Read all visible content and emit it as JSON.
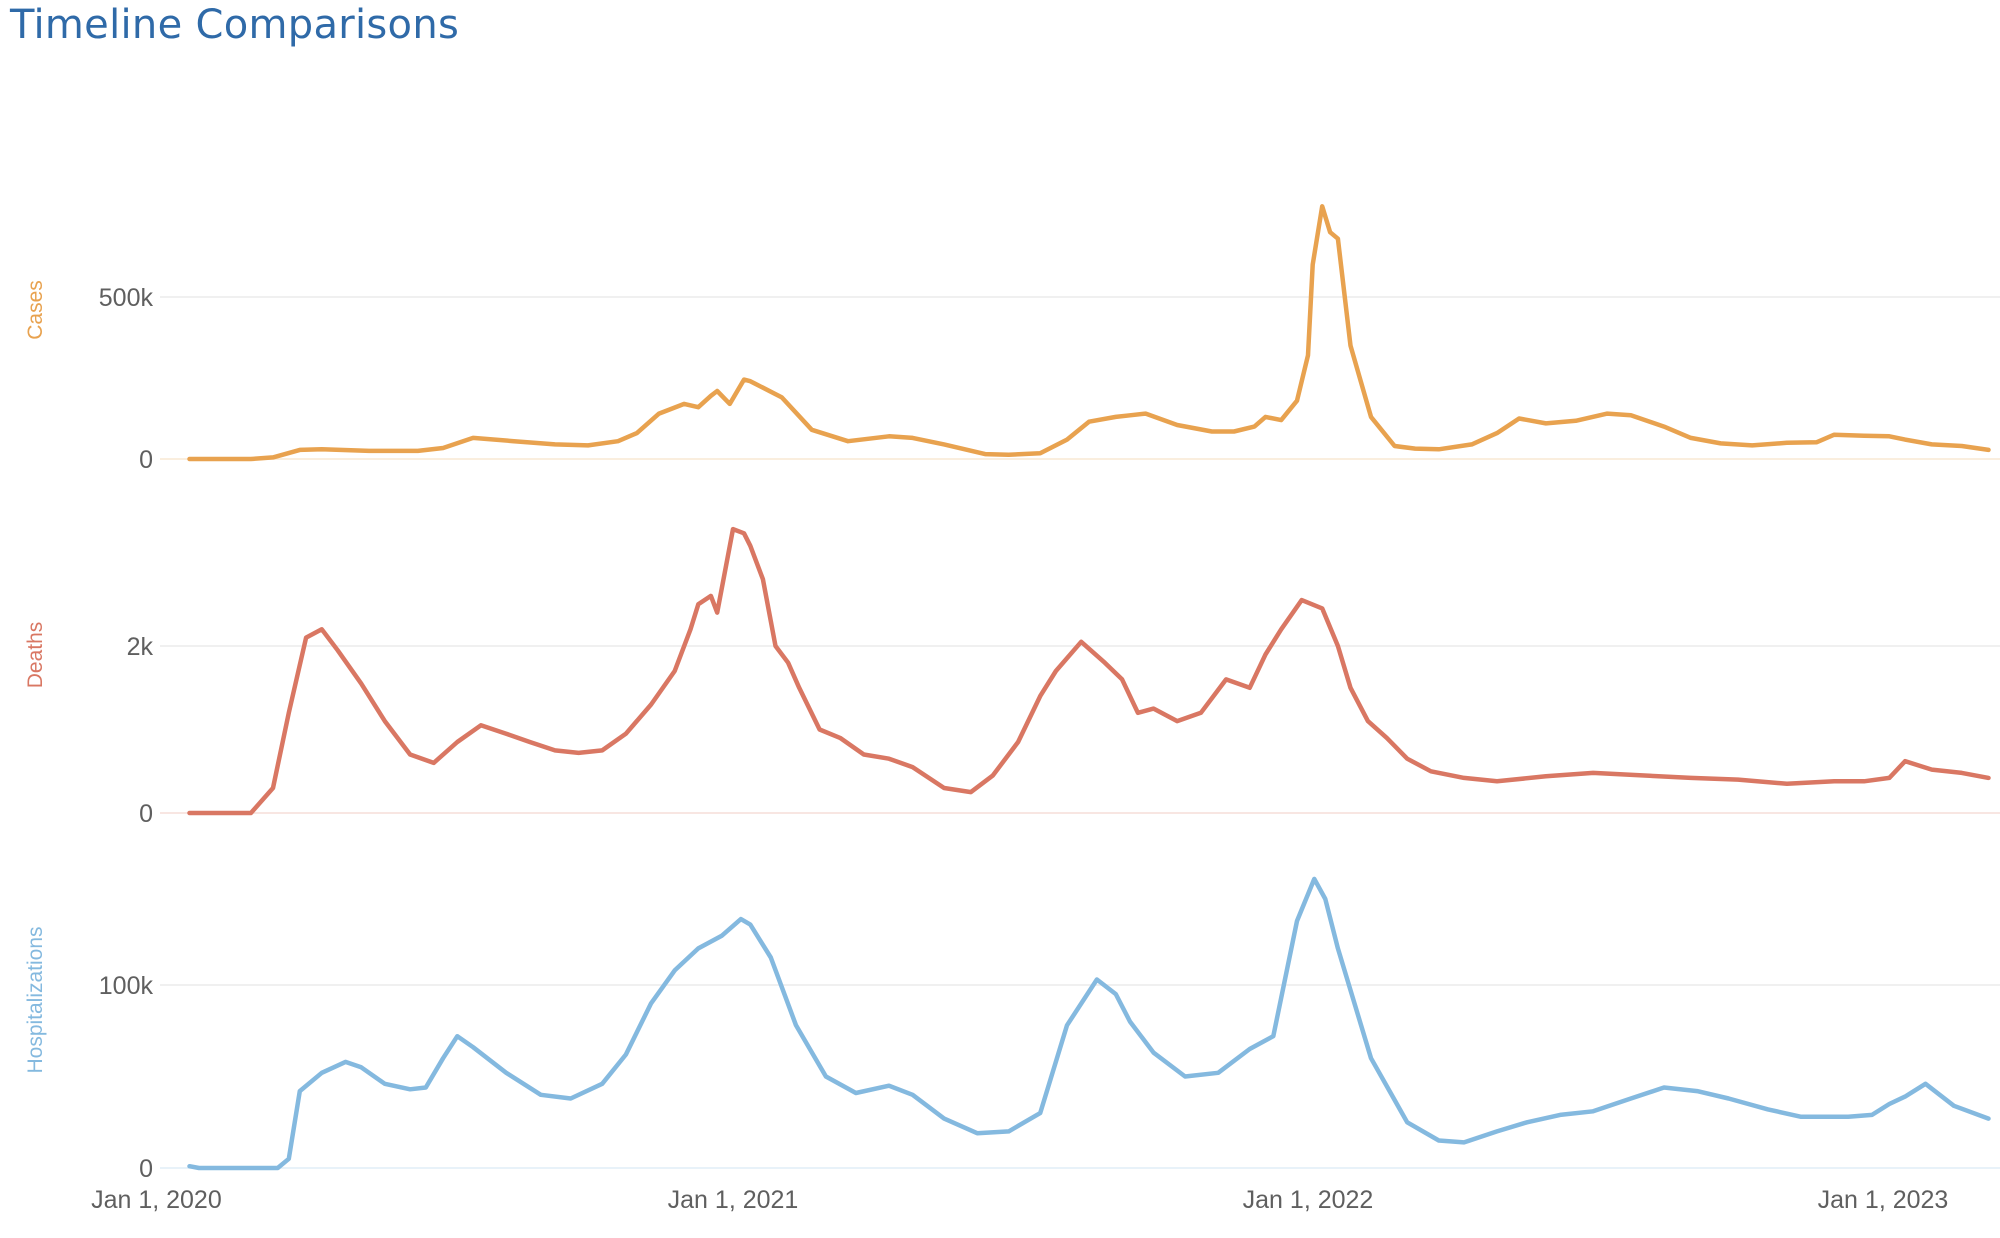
{
  "header": {
    "title": "Timeline Comparisons"
  },
  "colors": {
    "title": "#2f6aa8",
    "cases": "#e8a24f",
    "deaths": "#d97763",
    "hospitalizations": "#84b9df",
    "grid": "#ececec",
    "tick_text": "#5f5f5f"
  },
  "chart_data": [
    {
      "type": "line",
      "panel": "cases",
      "ylabel": "Cases",
      "yticks": [
        {
          "value": 0,
          "label": "0"
        },
        {
          "value": 500000,
          "label": "500k"
        }
      ],
      "xlim": [
        "2020-01-22",
        "2023-03-09"
      ],
      "ylim": [
        0,
        820000
      ],
      "color": "#e8a24f",
      "series": [
        {
          "x": [
            "2020-01-22",
            "2020-03-01",
            "2020-03-15",
            "2020-04-01",
            "2020-04-15",
            "2020-05-15",
            "2020-06-15",
            "2020-07-01",
            "2020-07-20",
            "2020-08-15",
            "2020-09-10",
            "2020-10-01",
            "2020-10-20",
            "2020-11-01",
            "2020-11-15",
            "2020-12-01",
            "2020-12-10",
            "2020-12-18",
            "2020-12-22",
            "2020-12-30",
            "2021-01-08",
            "2021-01-12",
            "2021-02-01",
            "2021-02-20",
            "2021-03-15",
            "2021-04-10",
            "2021-04-25",
            "2021-05-15",
            "2021-06-10",
            "2021-06-25",
            "2021-07-15",
            "2021-08-01",
            "2021-08-15",
            "2021-09-01",
            "2021-09-10",
            "2021-09-20",
            "2021-10-10",
            "2021-11-01",
            "2021-11-15",
            "2021-11-28",
            "2021-12-05",
            "2021-12-15",
            "2021-12-25",
            "2022-01-01",
            "2022-01-04",
            "2022-01-10",
            "2022-01-15",
            "2022-01-20",
            "2022-01-28",
            "2022-02-10",
            "2022-02-25",
            "2022-03-10",
            "2022-03-25",
            "2022-04-15",
            "2022-05-01",
            "2022-05-15",
            "2022-06-01",
            "2022-06-20",
            "2022-07-10",
            "2022-07-25",
            "2022-08-15",
            "2022-09-01",
            "2022-09-20",
            "2022-10-10",
            "2022-11-01",
            "2022-11-20",
            "2022-12-01",
            "2022-12-20",
            "2023-01-05",
            "2023-01-15",
            "2023-02-01",
            "2023-02-20",
            "2023-03-09"
          ],
          "y": [
            0,
            0,
            5000,
            28000,
            30000,
            25000,
            25000,
            34000,
            65000,
            55000,
            45000,
            42000,
            55000,
            80000,
            140000,
            170000,
            160000,
            195000,
            210000,
            170000,
            245000,
            240000,
            190000,
            90000,
            55000,
            70000,
            65000,
            45000,
            15000,
            13000,
            18000,
            60000,
            115000,
            130000,
            135000,
            140000,
            105000,
            85000,
            85000,
            100000,
            130000,
            120000,
            180000,
            320000,
            600000,
            780000,
            700000,
            680000,
            350000,
            130000,
            40000,
            32000,
            30000,
            45000,
            80000,
            125000,
            110000,
            118000,
            140000,
            135000,
            100000,
            65000,
            48000,
            42000,
            50000,
            52000,
            75000,
            72000,
            70000,
            60000,
            45000,
            40000,
            28000
          ]
        }
      ]
    },
    {
      "type": "line",
      "panel": "deaths",
      "ylabel": "Deaths",
      "yticks": [
        {
          "value": 0,
          "label": "0"
        },
        {
          "value": 2000,
          "label": "2k"
        }
      ],
      "xlim": [
        "2020-01-22",
        "2023-03-09"
      ],
      "ylim": [
        0,
        3600
      ],
      "color": "#d97763",
      "series": [
        {
          "x": [
            "2020-01-22",
            "2020-03-01",
            "2020-03-15",
            "2020-03-25",
            "2020-04-05",
            "2020-04-15",
            "2020-04-25",
            "2020-05-10",
            "2020-05-25",
            "2020-06-10",
            "2020-06-25",
            "2020-07-10",
            "2020-07-25",
            "2020-08-10",
            "2020-08-25",
            "2020-09-10",
            "2020-09-25",
            "2020-10-10",
            "2020-10-25",
            "2020-11-10",
            "2020-11-25",
            "2020-12-05",
            "2020-12-10",
            "2020-12-18",
            "2020-12-22",
            "2021-01-01",
            "2021-01-08",
            "2021-01-12",
            "2021-01-20",
            "2021-01-28",
            "2021-02-05",
            "2021-02-12",
            "2021-02-25",
            "2021-03-10",
            "2021-03-25",
            "2021-04-10",
            "2021-04-25",
            "2021-05-15",
            "2021-06-01",
            "2021-06-15",
            "2021-07-01",
            "2021-07-15",
            "2021-07-25",
            "2021-08-10",
            "2021-08-25",
            "2021-09-05",
            "2021-09-15",
            "2021-09-25",
            "2021-10-10",
            "2021-10-25",
            "2021-11-10",
            "2021-11-25",
            "2021-12-05",
            "2021-12-15",
            "2021-12-28",
            "2022-01-10",
            "2022-01-20",
            "2022-01-28",
            "2022-02-08",
            "2022-02-20",
            "2022-03-05",
            "2022-03-20",
            "2022-04-10",
            "2022-05-01",
            "2022-06-01",
            "2022-07-01",
            "2022-08-01",
            "2022-09-01",
            "2022-10-01",
            "2022-11-01",
            "2022-12-01",
            "2022-12-20",
            "2023-01-05",
            "2023-01-15",
            "2023-02-01",
            "2023-02-20",
            "2023-03-09"
          ],
          "y": [
            0,
            0,
            300,
            1200,
            2100,
            2200,
            1950,
            1550,
            1100,
            700,
            600,
            850,
            1050,
            950,
            850,
            750,
            720,
            750,
            950,
            1300,
            1700,
            2200,
            2500,
            2600,
            2400,
            3400,
            3350,
            3200,
            2800,
            2000,
            1800,
            1500,
            1000,
            900,
            700,
            650,
            550,
            300,
            250,
            450,
            850,
            1400,
            1700,
            2050,
            1800,
            1600,
            1200,
            1250,
            1100,
            1200,
            1600,
            1500,
            1900,
            2200,
            2550,
            2450,
            2000,
            1500,
            1100,
            900,
            650,
            500,
            420,
            380,
            440,
            480,
            450,
            420,
            400,
            350,
            380,
            380,
            420,
            620,
            520,
            480,
            420
          ]
        }
      ]
    },
    {
      "type": "line",
      "panel": "hospitalizations",
      "ylabel": "Hospitalizations",
      "yticks": [
        {
          "value": 0,
          "label": "0"
        },
        {
          "value": 100000,
          "label": "100k"
        }
      ],
      "xlim": [
        "2020-01-22",
        "2023-03-09"
      ],
      "ylim": [
        0,
        160000
      ],
      "color": "#84b9df",
      "series": [
        {
          "x": [
            "2020-01-22",
            "2020-01-28",
            "2020-03-18",
            "2020-03-25",
            "2020-04-01",
            "2020-04-15",
            "2020-04-30",
            "2020-05-10",
            "2020-05-25",
            "2020-06-10",
            "2020-06-20",
            "2020-07-01",
            "2020-07-10",
            "2020-07-20",
            "2020-08-10",
            "2020-09-01",
            "2020-09-20",
            "2020-10-10",
            "2020-10-25",
            "2020-11-10",
            "2020-11-25",
            "2020-12-10",
            "2020-12-25",
            "2021-01-06",
            "2021-01-12",
            "2021-01-25",
            "2021-02-10",
            "2021-03-01",
            "2021-03-20",
            "2021-04-10",
            "2021-04-25",
            "2021-05-15",
            "2021-06-05",
            "2021-06-25",
            "2021-07-15",
            "2021-08-01",
            "2021-08-20",
            "2021-09-01",
            "2021-09-10",
            "2021-09-25",
            "2021-10-15",
            "2021-11-05",
            "2021-11-25",
            "2021-12-10",
            "2021-12-25",
            "2022-01-05",
            "2022-01-12",
            "2022-01-20",
            "2022-02-10",
            "2022-03-05",
            "2022-03-25",
            "2022-04-10",
            "2022-05-01",
            "2022-05-20",
            "2022-06-10",
            "2022-07-01",
            "2022-07-25",
            "2022-08-15",
            "2022-09-05",
            "2022-09-25",
            "2022-10-20",
            "2022-11-10",
            "2022-11-25",
            "2022-12-10",
            "2022-12-25",
            "2023-01-05",
            "2023-01-15",
            "2023-01-28",
            "2023-02-15",
            "2023-03-09"
          ],
          "y": [
            1000,
            0,
            0,
            5000,
            42000,
            52000,
            58000,
            55000,
            46000,
            43000,
            44000,
            60000,
            72000,
            66000,
            52000,
            40000,
            38000,
            46000,
            62000,
            90000,
            108000,
            120000,
            127000,
            136000,
            133000,
            115000,
            78000,
            50000,
            41000,
            45000,
            40000,
            27000,
            19000,
            20000,
            30000,
            78000,
            103000,
            95000,
            80000,
            63000,
            50000,
            52000,
            65000,
            72000,
            135000,
            158000,
            147000,
            120000,
            60000,
            25000,
            15000,
            14000,
            20000,
            25000,
            29000,
            31000,
            38000,
            44000,
            42000,
            38000,
            32000,
            28000,
            28000,
            28000,
            29000,
            35000,
            39000,
            46000,
            34000,
            27000
          ]
        }
      ]
    }
  ],
  "x_axis": {
    "ticks": [
      {
        "date": "2020-01-01",
        "label": "Jan 1, 2020"
      },
      {
        "date": "2021-01-01",
        "label": "Jan 1, 2021"
      },
      {
        "date": "2022-01-01",
        "label": "Jan 1, 2022"
      },
      {
        "date": "2023-01-01",
        "label": "Jan 1, 2023"
      }
    ]
  }
}
